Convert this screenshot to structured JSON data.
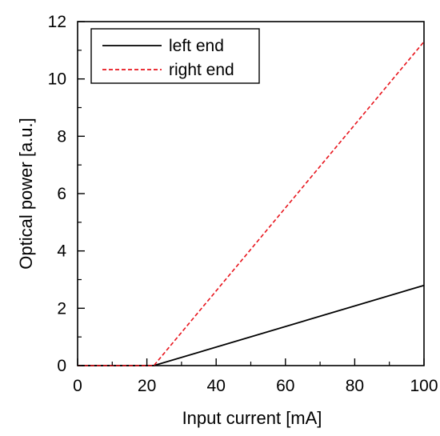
{
  "chart_data": {
    "type": "line",
    "xlabel": "Input current [mA]",
    "ylabel": "Optical power [a.u.]",
    "xlim": [
      0,
      100
    ],
    "ylim": [
      0,
      12
    ],
    "xticks": [
      0,
      20,
      40,
      60,
      80,
      100
    ],
    "yticks": [
      0,
      2,
      4,
      6,
      8,
      10,
      12
    ],
    "grid": false,
    "legend_position": "top-left",
    "series": [
      {
        "name": "left end",
        "color": "#000000",
        "style": "solid",
        "x": [
          0,
          22,
          100
        ],
        "y": [
          0.0,
          0.0,
          2.8
        ]
      },
      {
        "name": "right end",
        "color": "#e8141c",
        "style": "dashed",
        "x": [
          0,
          22,
          100
        ],
        "y": [
          0.0,
          0.0,
          11.3
        ]
      }
    ]
  }
}
